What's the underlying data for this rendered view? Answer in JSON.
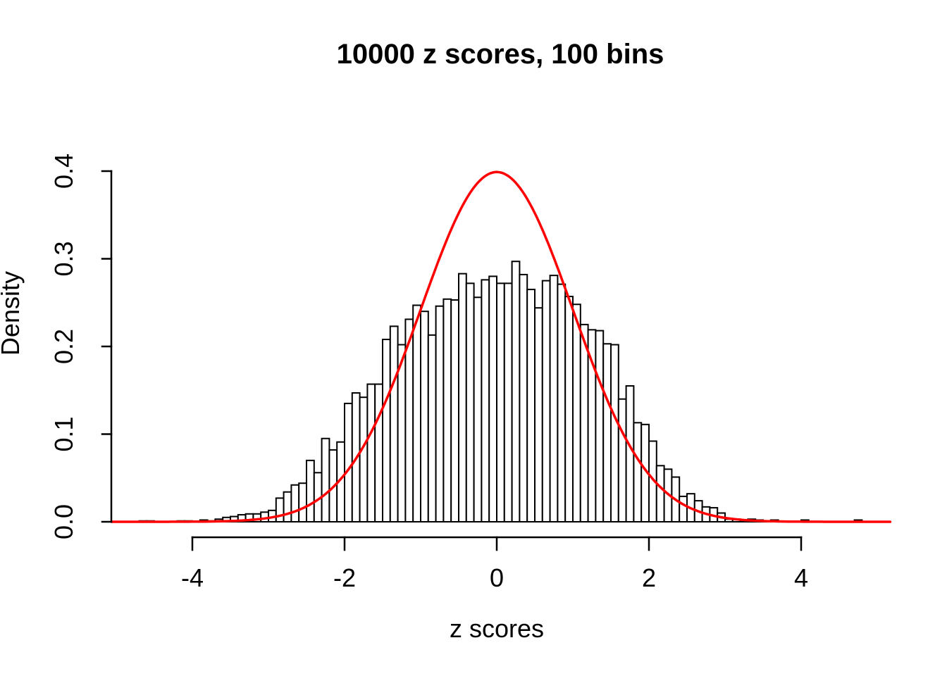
{
  "page": {
    "background": "#ffffff",
    "text_color": "#000000"
  },
  "chart_data": {
    "type": "bar",
    "subtype": "histogram-with-normal-curve",
    "title": "10000 z scores, 100 bins",
    "xlabel": "z scores",
    "ylabel": "Density",
    "xlim": [
      -5.06,
      5.17
    ],
    "ylim": [
      0,
      0.4
    ],
    "grid": false,
    "legend": null,
    "axis_color": "#000000",
    "bars": {
      "fill": "#ffffff",
      "stroke": "#000000",
      "bin_start": -4.7,
      "bin_width": 0.1,
      "densities": [
        0.001,
        0.001,
        0,
        0,
        0,
        0.001,
        0.001,
        0,
        0.002,
        0.001,
        0.003,
        0.005,
        0.006,
        0.008,
        0.009,
        0.009,
        0.011,
        0.013,
        0.027,
        0.034,
        0.042,
        0.044,
        0.07,
        0.056,
        0.095,
        0.082,
        0.091,
        0.135,
        0.147,
        0.142,
        0.157,
        0.157,
        0.208,
        0.223,
        0.202,
        0.231,
        0.247,
        0.24,
        0.213,
        0.246,
        0.254,
        0.253,
        0.283,
        0.272,
        0.256,
        0.276,
        0.28,
        0.272,
        0.272,
        0.297,
        0.282,
        0.265,
        0.244,
        0.275,
        0.281,
        0.271,
        0.257,
        0.248,
        0.225,
        0.219,
        0.218,
        0.203,
        0.202,
        0.14,
        0.155,
        0.113,
        0.111,
        0.092,
        0.064,
        0.06,
        0.051,
        0.029,
        0.032,
        0.024,
        0.017,
        0.016,
        0.01,
        0.003,
        0.003,
        0.002,
        0.003,
        0.002,
        0,
        0.002,
        0,
        0,
        0,
        0.002,
        0,
        0,
        0,
        0,
        0,
        0,
        0.002
      ]
    },
    "overlay_curve": {
      "shape": "normal-density",
      "mean": 0,
      "sd": 1,
      "peak_density": 0.3989,
      "color": "#ff0000",
      "x_range": [
        -5.06,
        5.17
      ]
    },
    "x_ticks": [
      {
        "value": -4,
        "label": "-4"
      },
      {
        "value": -2,
        "label": "-2"
      },
      {
        "value": 0,
        "label": "0"
      },
      {
        "value": 2,
        "label": "2"
      },
      {
        "value": 4,
        "label": "4"
      }
    ],
    "y_ticks": [
      {
        "value": 0.0,
        "label": "0.0"
      },
      {
        "value": 0.1,
        "label": "0.1"
      },
      {
        "value": 0.2,
        "label": "0.2"
      },
      {
        "value": 0.3,
        "label": "0.3"
      },
      {
        "value": 0.4,
        "label": "0.4"
      }
    ]
  }
}
